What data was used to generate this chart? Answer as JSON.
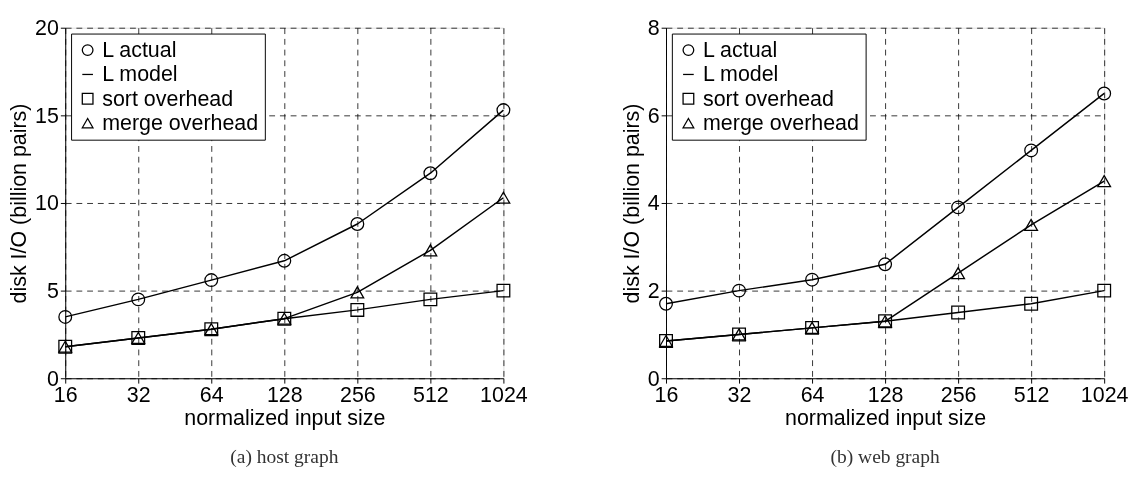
{
  "chart_data": [
    {
      "type": "line",
      "x": [
        16,
        32,
        64,
        128,
        256,
        512,
        1024
      ],
      "xlabel": "normalized input size",
      "ylabel": "disk I/O (billion pairs)",
      "log": "x",
      "xlim": [
        16,
        1024
      ],
      "xticks": [
        16,
        32,
        64,
        128,
        256,
        512,
        1024
      ],
      "ylim": [
        0,
        20
      ],
      "yticks": [
        0,
        5,
        10,
        15,
        20
      ],
      "grid": true,
      "legend": "top left",
      "line_style": "solid",
      "annotations": [
        "(a) host graph"
      ],
      "series": [
        {
          "name": "L actual",
          "type": "scatter",
          "marker": "circle",
          "color": "#000000",
          "values": [
            3.5,
            4.5,
            5.6,
            6.7,
            8.8,
            11.7,
            15.3
          ]
        },
        {
          "name": "L model",
          "type": "line",
          "marker": "none",
          "color": "#000000",
          "values": [
            3.5,
            4.5,
            5.6,
            6.7,
            8.8,
            11.7,
            15.3
          ]
        },
        {
          "name": "sort overhead",
          "type": "line",
          "marker": "square",
          "color": "#000000",
          "values": [
            1.8,
            2.3,
            2.8,
            3.4,
            3.9,
            4.5,
            5.0
          ]
        },
        {
          "name": "merge overhead",
          "type": "line",
          "marker": "triangle",
          "color": "#000000",
          "values": [
            1.8,
            2.3,
            2.8,
            3.4,
            4.9,
            7.3,
            10.3
          ]
        }
      ]
    },
    {
      "type": "line",
      "x": [
        16,
        32,
        64,
        128,
        256,
        512,
        1024
      ],
      "xlabel": "normalized input size",
      "ylabel": "disk I/O (billion pairs)",
      "log": "x",
      "xlim": [
        16,
        1024
      ],
      "xticks": [
        16,
        32,
        64,
        128,
        256,
        512,
        1024
      ],
      "ylim": [
        0,
        8
      ],
      "yticks": [
        0,
        2,
        4,
        6,
        8
      ],
      "grid": true,
      "legend": "top left",
      "line_style": "solid",
      "annotations": [
        "(b) web graph"
      ],
      "series": [
        {
          "name": "L actual",
          "type": "scatter",
          "marker": "circle",
          "color": "#000000",
          "values": [
            1.7,
            2.0,
            2.25,
            2.6,
            3.9,
            5.2,
            6.5
          ]
        },
        {
          "name": "L model",
          "type": "line",
          "marker": "none",
          "color": "#000000",
          "values": [
            1.7,
            2.0,
            2.25,
            2.6,
            3.9,
            5.2,
            6.5
          ]
        },
        {
          "name": "sort overhead",
          "type": "line",
          "marker": "square",
          "color": "#000000",
          "values": [
            0.85,
            1.0,
            1.15,
            1.3,
            1.5,
            1.7,
            2.0
          ]
        },
        {
          "name": "merge overhead",
          "type": "line",
          "marker": "triangle",
          "color": "#000000",
          "values": [
            0.85,
            1.0,
            1.15,
            1.3,
            2.4,
            3.5,
            4.5
          ]
        }
      ]
    }
  ]
}
